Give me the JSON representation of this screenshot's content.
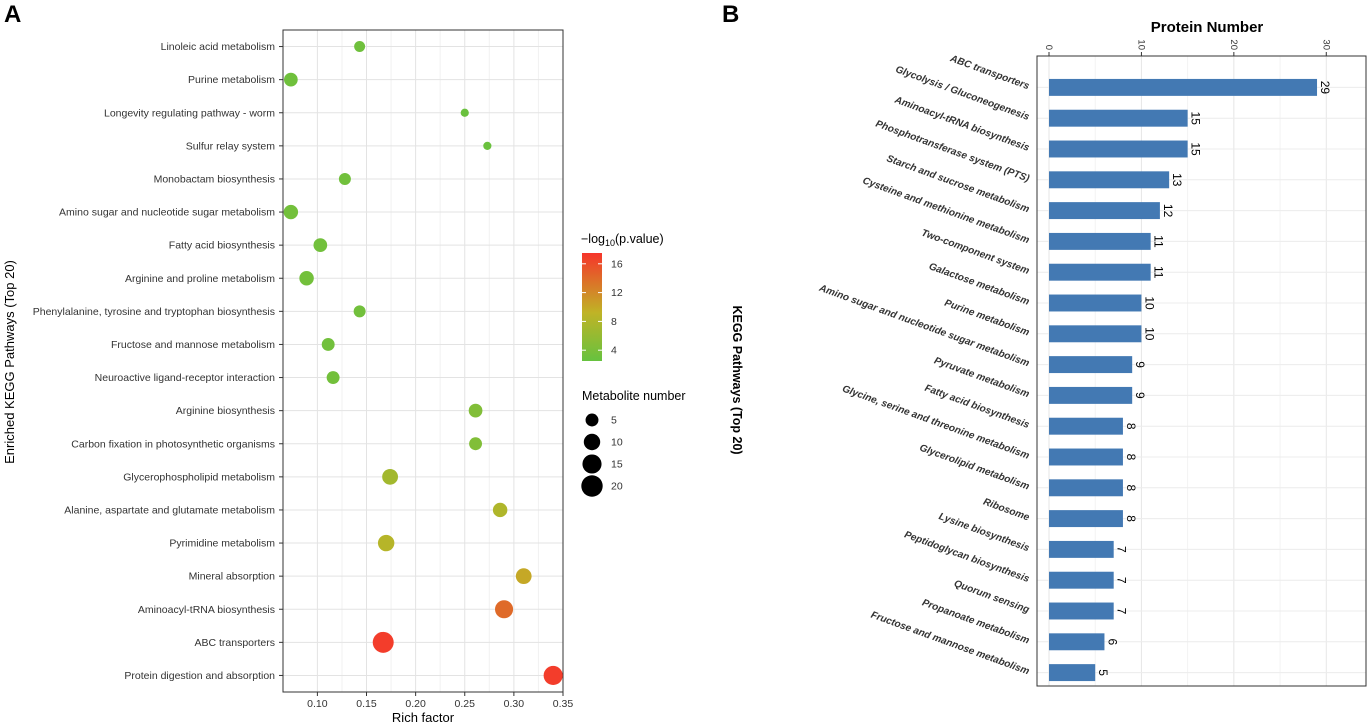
{
  "chart_data": [
    {
      "type": "scatter",
      "panel_label": "A",
      "xlabel": "Rich factor",
      "ylabel": "Enriched KEGG Pathways (Top 20)",
      "xlim": [
        0.065,
        0.35
      ],
      "xticks": [
        0.1,
        0.15,
        0.2,
        0.25,
        0.3,
        0.35
      ],
      "xtick_labels": [
        "0.10",
        "0.15",
        "0.20",
        "0.25",
        "0.30",
        "0.35"
      ],
      "grid": true,
      "categories": [
        "Linoleic acid metabolism",
        "Purine metabolism",
        "Longevity regulating pathway - worm",
        "Sulfur relay system",
        "Monobactam biosynthesis",
        "Amino sugar and nucleotide sugar metabolism",
        "Fatty acid biosynthesis",
        "Arginine and proline metabolism",
        "Phenylalanine, tyrosine and tryptophan biosynthesis",
        "Fructose and mannose metabolism",
        "Neuroactive ligand-receptor interaction",
        "Arginine biosynthesis",
        "Carbon fixation in photosynthetic organisms",
        "Glycerophospholipid metabolism",
        "Alanine, aspartate and glutamate metabolism",
        "Pyrimidine metabolism",
        "Mineral absorption",
        "Aminoacyl-tRNA biosynthesis",
        "ABC transporters",
        "Protein digestion and absorption"
      ],
      "rich_factor": [
        0.143,
        0.073,
        0.25,
        0.273,
        0.128,
        0.073,
        0.103,
        0.089,
        0.143,
        0.111,
        0.116,
        0.261,
        0.261,
        0.174,
        0.286,
        0.17,
        0.31,
        0.29,
        0.167,
        0.34
      ],
      "metabolite_number": [
        3,
        6,
        1,
        1,
        4,
        7,
        6,
        7,
        4,
        5,
        5,
        6,
        5,
        9,
        7,
        10,
        9,
        13,
        19,
        15
      ],
      "neg_log10_pvalue": [
        3.2,
        3.2,
        2.8,
        2.8,
        3.3,
        3.5,
        3.4,
        3.5,
        3.4,
        3.4,
        3.5,
        4.5,
        4.5,
        7.0,
        8.0,
        8.5,
        10.0,
        14.0,
        17.0,
        17.0
      ],
      "color_legend": {
        "title_prefix": "−log",
        "title_sub": "10",
        "title_suffix": "(p.value)",
        "ticks": [
          4,
          8,
          12,
          16
        ],
        "tick_labels": [
          "4",
          "8",
          "12",
          "16"
        ],
        "range": [
          2.5,
          17.5
        ],
        "low_color": "#66c23f",
        "mid_color": "#c0b326",
        "high_color": "#f6352b"
      },
      "size_legend": {
        "title": "Metabolite number",
        "values": [
          5,
          10,
          15,
          20
        ],
        "labels": [
          "5",
          "10",
          "15",
          "20"
        ]
      }
    },
    {
      "type": "bar",
      "panel_label": "B",
      "title": "Protein Number",
      "ylabel": "KEGG Pathways (Top 20)",
      "xlim": [
        0,
        33
      ],
      "xticks": [
        0,
        10,
        20,
        30
      ],
      "xtick_labels": [
        "0",
        "10",
        "20",
        "30"
      ],
      "bar_color": "#4379b3",
      "grid": true,
      "categories": [
        "ABC transporters",
        "Glycolysis / Gluconeogenesis",
        "Aminoacyl-tRNA biosynthesis",
        "Phosphotransferase system (PTS)",
        "Starch and sucrose metabolism",
        "Cysteine and methionine metabolism",
        "Two-component system",
        "Galactose metabolism",
        "Purine metabolism",
        "Amino sugar and nucleotide sugar metabolism",
        "Pyruvate metabolism",
        "Fatty acid biosynthesis",
        "Glycine, serine and threonine metabolism",
        "Glycerolipid metabolism",
        "Ribosome",
        "Lysine biosynthesis",
        "Peptidoglycan biosynthesis",
        "Quorum sensing",
        "Propanoate metabolism",
        "Fructose and mannose metabolism"
      ],
      "values": [
        29,
        15,
        15,
        13,
        12,
        11,
        11,
        10,
        10,
        9,
        9,
        8,
        8,
        8,
        8,
        7,
        7,
        7,
        6,
        5
      ],
      "value_labels": [
        "29",
        "15",
        "15",
        "13",
        "12",
        "11",
        "11",
        "10",
        "10",
        "9",
        "9",
        "8",
        "8",
        "8",
        "8",
        "7",
        "7",
        "7",
        "6",
        "5"
      ]
    }
  ]
}
